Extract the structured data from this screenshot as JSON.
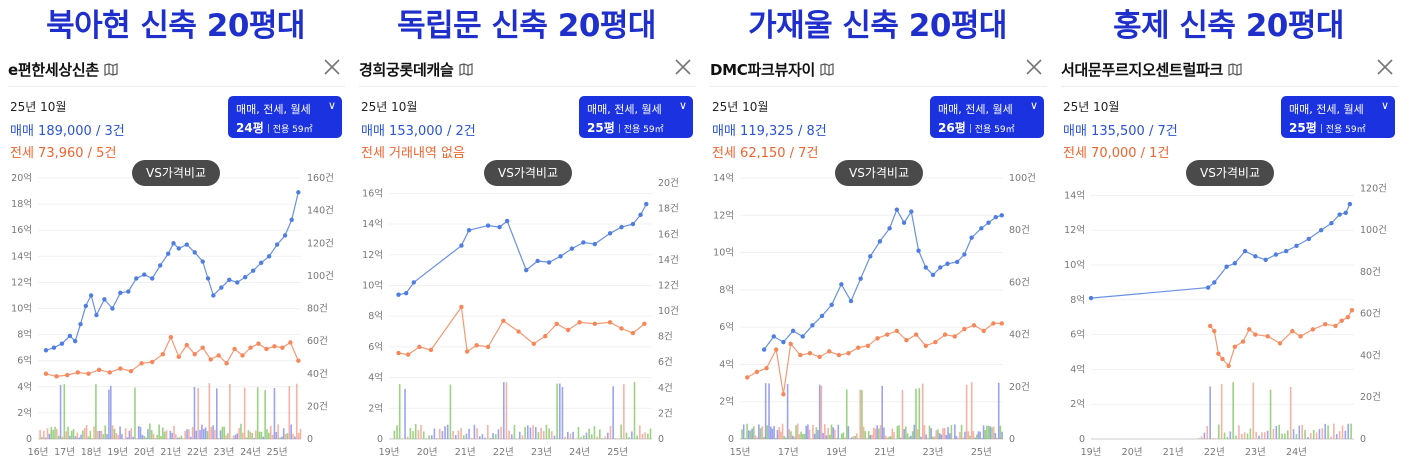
{
  "panels": [
    {
      "heading": "북아현 신축 20평대",
      "apt_name": "e편한세상신촌",
      "month": "25년 10월",
      "sale_summary": "매매 189,000 / 3건",
      "jeonse_summary": "전세 73,960 / 5건",
      "filter_types": "매매, 전세, 월세",
      "filter_size": "24평",
      "filter_area": "전용 59㎡",
      "vs_label": "VS가격비교"
    },
    {
      "heading": "독립문 신축 20평대",
      "apt_name": "경희궁롯데캐슬",
      "month": "25년 10월",
      "sale_summary": "매매 153,000 / 2건",
      "jeonse_summary": "전세 거래내역 없음",
      "filter_types": "매매, 전세, 월세",
      "filter_size": "25평",
      "filter_area": "전용 59㎡",
      "vs_label": "VS가격비교"
    },
    {
      "heading": "가재울 신축 20평대",
      "apt_name": "DMC파크뷰자이",
      "month": "25년 10월",
      "sale_summary": "매매 119,325 / 8건",
      "jeonse_summary": "전세 62,150 / 7건",
      "filter_types": "매매, 전세, 월세",
      "filter_size": "26평",
      "filter_area": "전용 59㎡",
      "vs_label": "VS가격비교"
    },
    {
      "heading": "홍제 신축 20평대",
      "apt_name": "서대문푸르지오센트럴파크",
      "month": "25년 10월",
      "sale_summary": "매매 135,500 / 7건",
      "jeonse_summary": "전세 70,000 / 1건",
      "filter_types": "매매, 전세, 월세",
      "filter_size": "25평",
      "filter_area": "전용 59㎡",
      "vs_label": "VS가격비교"
    }
  ],
  "colors": {
    "heading": "#1f2fcc",
    "sale": "#4f7de0",
    "jeonse": "#f5875a",
    "volume_green": "#7ac35a",
    "volume_red": "#f29a88",
    "volume_blue": "#7b86e8",
    "filter_bg": "#1b32e0"
  },
  "icons": {
    "map": "map-icon",
    "close": "close-icon",
    "dropdown": "chevron-down-icon"
  },
  "chart_data": [
    {
      "type": "line",
      "title": "",
      "x_ticks": [
        "16년",
        "17년",
        "18년",
        "19년",
        "20년",
        "21년",
        "22년",
        "23년",
        "24년",
        "25년"
      ],
      "x_range": [
        2016.0,
        2025.9
      ],
      "y_left_ticks": [
        "0",
        "2억",
        "4억",
        "6억",
        "8억",
        "10억",
        "12억",
        "14억",
        "16억",
        "18억",
        "20억"
      ],
      "y_left_range": [
        0,
        20
      ],
      "y_right_ticks": [
        "0",
        "20건",
        "40건",
        "60건",
        "80건",
        "100건",
        "120건",
        "140건",
        "160건"
      ],
      "y_right_range": [
        0,
        160
      ],
      "grid": true,
      "series": [
        {
          "kind": "sale",
          "x": [
            2016.3,
            2016.6,
            2016.9,
            2017.2,
            2017.4,
            2017.6,
            2017.8,
            2018.0,
            2018.2,
            2018.5,
            2018.8,
            2019.1,
            2019.4,
            2019.7,
            2020.0,
            2020.3,
            2020.6,
            2020.9,
            2021.1,
            2021.3,
            2021.6,
            2021.9,
            2022.2,
            2022.4,
            2022.6,
            2022.9,
            2023.2,
            2023.5,
            2023.8,
            2024.1,
            2024.4,
            2024.7,
            2025.0,
            2025.3,
            2025.55,
            2025.8
          ],
          "y": [
            6.8,
            7.0,
            7.3,
            7.9,
            7.5,
            8.8,
            10.2,
            11.0,
            9.5,
            10.7,
            10.0,
            11.2,
            11.3,
            12.3,
            12.6,
            12.3,
            13.3,
            14.2,
            15.0,
            14.6,
            14.9,
            14.3,
            13.6,
            12.3,
            11.0,
            11.6,
            12.2,
            12.0,
            12.4,
            12.9,
            13.5,
            14.0,
            14.9,
            15.6,
            16.8,
            18.9
          ]
        },
        {
          "kind": "jeonse",
          "x": [
            2016.3,
            2016.7,
            2017.1,
            2017.5,
            2017.9,
            2018.3,
            2018.7,
            2019.1,
            2019.5,
            2019.9,
            2020.3,
            2020.7,
            2021.0,
            2021.3,
            2021.6,
            2021.9,
            2022.2,
            2022.5,
            2022.8,
            2023.1,
            2023.4,
            2023.7,
            2024.0,
            2024.3,
            2024.6,
            2024.9,
            2025.2,
            2025.5,
            2025.8
          ],
          "y": [
            5.0,
            4.8,
            4.9,
            5.1,
            5.0,
            5.3,
            5.1,
            5.4,
            5.2,
            5.8,
            5.9,
            6.5,
            7.8,
            6.3,
            7.2,
            6.5,
            7.0,
            6.1,
            6.4,
            5.8,
            6.9,
            6.4,
            7.0,
            7.3,
            6.9,
            7.1,
            7.0,
            7.4,
            6.0
          ]
        }
      ]
    },
    {
      "type": "line",
      "title": "",
      "x_ticks": [
        "19년",
        "20년",
        "21년",
        "22년",
        "23년",
        "24년",
        "25년"
      ],
      "x_range": [
        2019.0,
        2025.9
      ],
      "y_left_ticks": [
        "0",
        "2억",
        "4억",
        "6억",
        "8억",
        "10억",
        "12억",
        "14억",
        "16억"
      ],
      "y_left_range": [
        0,
        17
      ],
      "y_right_ticks": [
        "0",
        "2건",
        "4건",
        "6건",
        "8건",
        "10건",
        "12건",
        "14건",
        "16건",
        "18건",
        "20건"
      ],
      "y_right_range": [
        0,
        20.4
      ],
      "grid": true,
      "series": [
        {
          "kind": "sale",
          "x": [
            2019.25,
            2019.45,
            2019.65,
            2020.9,
            2021.1,
            2021.6,
            2021.9,
            2022.1,
            2022.6,
            2022.9,
            2023.2,
            2023.5,
            2023.8,
            2024.1,
            2024.4,
            2024.8,
            2025.1,
            2025.4,
            2025.6,
            2025.75
          ],
          "y": [
            9.4,
            9.5,
            10.2,
            12.6,
            13.6,
            13.9,
            13.8,
            14.2,
            11.0,
            11.6,
            11.5,
            11.9,
            12.4,
            12.8,
            12.7,
            13.4,
            13.8,
            14.0,
            14.6,
            15.3
          ]
        },
        {
          "kind": "jeonse",
          "x": [
            2019.25,
            2019.5,
            2019.8,
            2020.1,
            2020.9,
            2021.05,
            2021.3,
            2021.6,
            2022.0,
            2022.4,
            2022.8,
            2023.1,
            2023.4,
            2023.7,
            2024.0,
            2024.4,
            2024.8,
            2025.1,
            2025.4,
            2025.7
          ],
          "y": [
            5.6,
            5.5,
            6.0,
            5.8,
            8.6,
            5.7,
            6.1,
            6.0,
            7.7,
            7.0,
            6.2,
            6.7,
            7.5,
            7.1,
            7.6,
            7.5,
            7.6,
            7.2,
            6.9,
            7.5
          ]
        }
      ]
    },
    {
      "type": "line",
      "title": "",
      "x_ticks": [
        "15년",
        "17년",
        "19년",
        "21년",
        "23년",
        "25년"
      ],
      "x_range": [
        2015.0,
        2025.9
      ],
      "y_left_ticks": [
        "0",
        "2억",
        "4억",
        "6억",
        "8억",
        "10억",
        "12억",
        "14억"
      ],
      "y_left_range": [
        0,
        14
      ],
      "y_right_ticks": [
        "0",
        "20건",
        "40건",
        "60건",
        "80건",
        "100건"
      ],
      "y_right_range": [
        0,
        100
      ],
      "grid": true,
      "series": [
        {
          "kind": "sale",
          "x": [
            2016.0,
            2016.4,
            2016.8,
            2017.2,
            2017.6,
            2018.0,
            2018.4,
            2018.8,
            2019.2,
            2019.6,
            2020.0,
            2020.4,
            2020.8,
            2021.2,
            2021.5,
            2021.8,
            2022.1,
            2022.4,
            2022.7,
            2023.0,
            2023.3,
            2023.6,
            2024.0,
            2024.3,
            2024.6,
            2025.0,
            2025.3,
            2025.6,
            2025.85
          ],
          "y": [
            4.8,
            5.5,
            5.2,
            5.8,
            5.5,
            6.1,
            6.6,
            7.2,
            8.3,
            7.4,
            8.6,
            9.8,
            10.6,
            11.3,
            12.3,
            11.6,
            12.2,
            10.1,
            9.2,
            8.8,
            9.2,
            9.4,
            9.5,
            9.9,
            10.8,
            11.3,
            11.6,
            11.9,
            12.0
          ]
        },
        {
          "kind": "jeonse",
          "x": [
            2015.3,
            2015.7,
            2016.1,
            2016.5,
            2016.8,
            2017.1,
            2017.5,
            2017.9,
            2018.3,
            2018.7,
            2019.1,
            2019.5,
            2019.9,
            2020.3,
            2020.7,
            2021.1,
            2021.5,
            2021.9,
            2022.3,
            2022.7,
            2023.1,
            2023.5,
            2023.9,
            2024.3,
            2024.7,
            2025.1,
            2025.5,
            2025.85
          ],
          "y": [
            3.3,
            3.6,
            3.8,
            4.8,
            2.4,
            5.1,
            4.5,
            4.6,
            4.4,
            4.7,
            4.5,
            4.6,
            4.9,
            5.0,
            5.4,
            5.6,
            5.8,
            5.3,
            5.6,
            5.0,
            5.2,
            5.6,
            5.5,
            5.9,
            6.1,
            5.8,
            6.2,
            6.2
          ]
        }
      ]
    },
    {
      "type": "line",
      "title": "",
      "x_ticks": [
        "19년",
        "20년",
        "21년",
        "22년",
        "23년",
        "24년"
      ],
      "x_range": [
        2019.0,
        2025.4
      ],
      "y_left_ticks": [
        "0",
        "2억",
        "4억",
        "6억",
        "8억",
        "10억",
        "12억",
        "14억"
      ],
      "y_left_range": [
        0,
        15
      ],
      "y_right_ticks": [
        "0",
        "20건",
        "40건",
        "60건",
        "80건",
        "100건",
        "120건"
      ],
      "y_right_range": [
        0,
        125
      ],
      "grid": true,
      "series": [
        {
          "kind": "sale",
          "x": [
            2019.0,
            2021.85,
            2022.0,
            2022.3,
            2022.5,
            2022.75,
            2023.0,
            2023.25,
            2023.5,
            2023.75,
            2024.0,
            2024.3,
            2024.6,
            2024.85,
            2025.05,
            2025.2,
            2025.3
          ],
          "y": [
            8.1,
            8.7,
            9.0,
            9.9,
            10.1,
            10.8,
            10.5,
            10.3,
            10.6,
            10.8,
            11.1,
            11.5,
            12.0,
            12.4,
            12.9,
            13.0,
            13.5
          ]
        },
        {
          "kind": "jeonse",
          "x": [
            2021.9,
            2022.0,
            2022.1,
            2022.2,
            2022.35,
            2022.5,
            2022.7,
            2022.85,
            2023.0,
            2023.3,
            2023.6,
            2023.9,
            2024.1,
            2024.4,
            2024.7,
            2024.95,
            2025.1,
            2025.25,
            2025.35
          ],
          "y": [
            6.5,
            6.2,
            4.9,
            4.6,
            4.2,
            5.3,
            5.6,
            6.3,
            6.0,
            5.9,
            5.5,
            6.2,
            5.9,
            6.3,
            6.6,
            6.5,
            6.8,
            7.0,
            7.4
          ]
        }
      ]
    }
  ]
}
